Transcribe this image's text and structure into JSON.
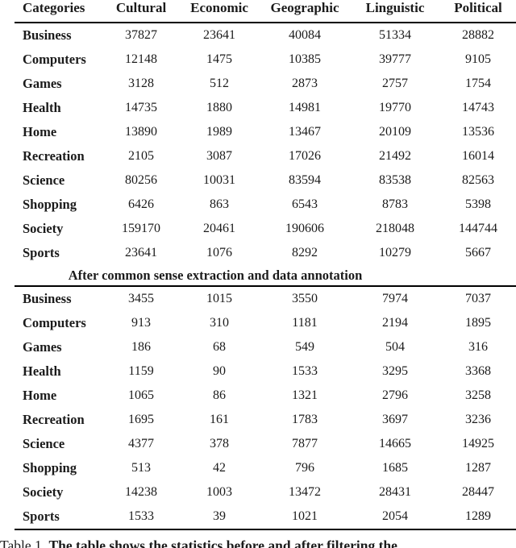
{
  "page": {
    "background_color": "#ffffff",
    "text_color": "#1b1b1b",
    "rule_color": "#000000"
  },
  "table": {
    "columns": [
      "Categories",
      "Cultural",
      "Economic",
      "Geographic",
      "Linguistic",
      "Political"
    ],
    "divider_label": "After common sense extraction and data annotation",
    "sections": [
      {
        "name": "before-filtering",
        "rows": [
          {
            "category": "Business",
            "values": [
              37827,
              23641,
              40084,
              51334,
              28882
            ]
          },
          {
            "category": "Computers",
            "values": [
              12148,
              1475,
              10385,
              39777,
              9105
            ]
          },
          {
            "category": "Games",
            "values": [
              3128,
              512,
              2873,
              2757,
              1754
            ]
          },
          {
            "category": "Health",
            "values": [
              14735,
              1880,
              14981,
              19770,
              14743
            ]
          },
          {
            "category": "Home",
            "values": [
              13890,
              1989,
              13467,
              20109,
              13536
            ]
          },
          {
            "category": "Recreation",
            "values": [
              2105,
              3087,
              17026,
              21492,
              16014
            ]
          },
          {
            "category": "Science",
            "values": [
              80256,
              10031,
              83594,
              83538,
              82563
            ]
          },
          {
            "category": "Shopping",
            "values": [
              6426,
              863,
              6543,
              8783,
              5398
            ]
          },
          {
            "category": "Society",
            "values": [
              159170,
              20461,
              190606,
              218048,
              144744
            ]
          },
          {
            "category": "Sports",
            "values": [
              23641,
              1076,
              8292,
              10279,
              5667
            ]
          }
        ]
      },
      {
        "name": "after-filtering",
        "rows": [
          {
            "category": "Business",
            "values": [
              3455,
              1015,
              3550,
              7974,
              7037
            ]
          },
          {
            "category": "Computers",
            "values": [
              913,
              310,
              1181,
              2194,
              1895
            ]
          },
          {
            "category": "Games",
            "values": [
              186,
              68,
              549,
              504,
              316
            ]
          },
          {
            "category": "Health",
            "values": [
              1159,
              90,
              1533,
              3295,
              3368
            ]
          },
          {
            "category": "Home",
            "values": [
              1065,
              86,
              1321,
              2796,
              3258
            ]
          },
          {
            "category": "Recreation",
            "values": [
              1695,
              161,
              1783,
              3697,
              3236
            ]
          },
          {
            "category": "Science",
            "values": [
              4377,
              378,
              7877,
              14665,
              14925
            ]
          },
          {
            "category": "Shopping",
            "values": [
              513,
              42,
              796,
              1685,
              1287
            ]
          },
          {
            "category": "Society",
            "values": [
              14238,
              1003,
              13472,
              28431,
              28447
            ]
          },
          {
            "category": "Sports",
            "values": [
              1533,
              39,
              1021,
              2054,
              1289
            ]
          }
        ]
      }
    ]
  },
  "caption": {
    "prefix": "Table 1.",
    "text": "The table shows the statistics before and after filtering the"
  }
}
